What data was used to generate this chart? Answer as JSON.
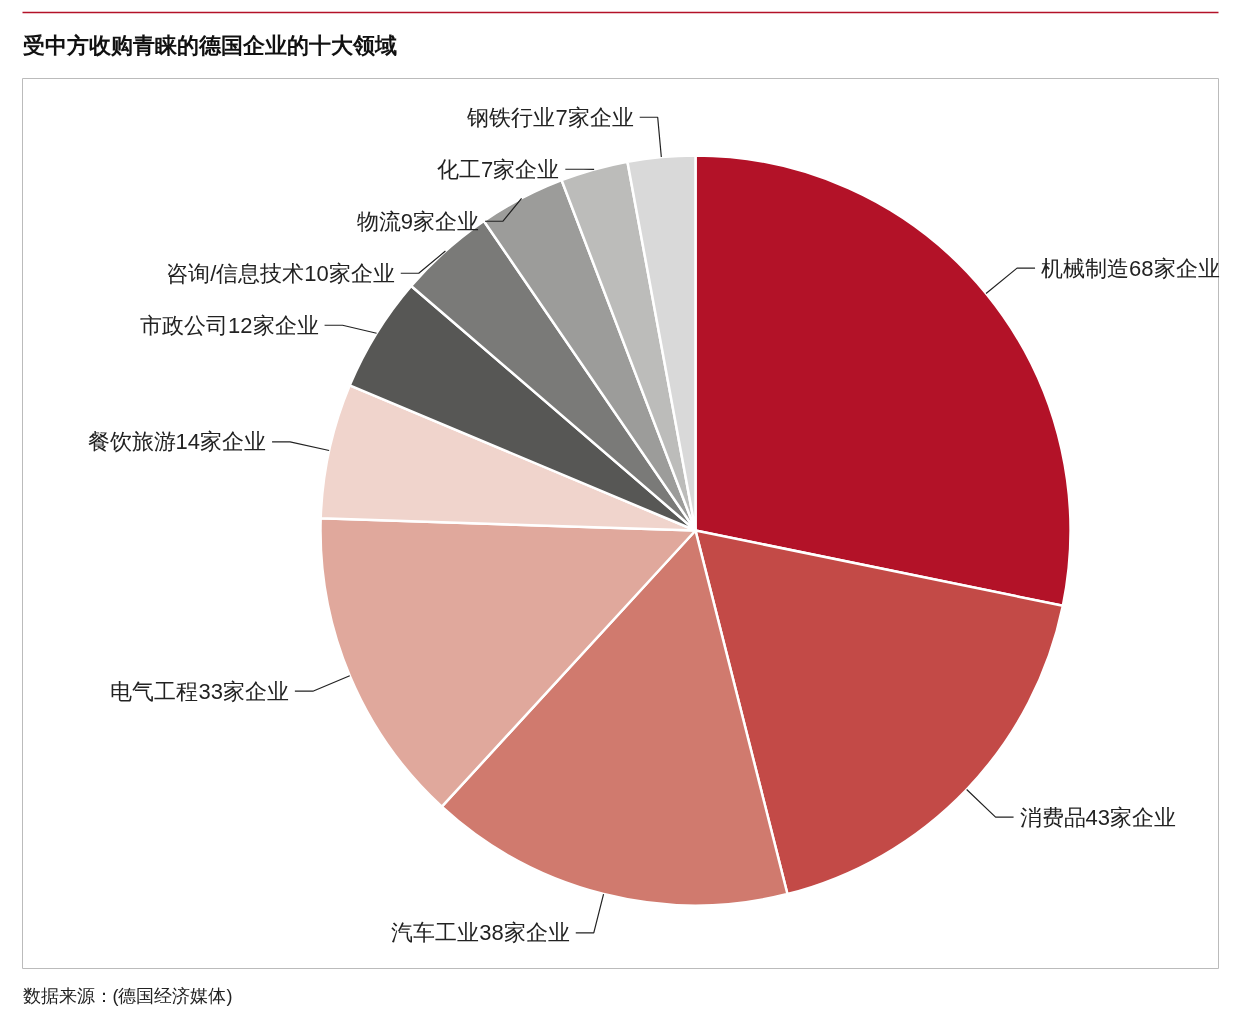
{
  "chart_data": {
    "type": "pie",
    "title": "受中方收购青睐的德国企业的十大领域",
    "categories": [
      "机械制造68家企业",
      "消费品43家企业",
      "汽车工业38家企业",
      "电气工程33家企业",
      "餐饮旅游14家企业",
      "市政公司12家企业",
      "咨询/信息技术10家企业",
      "物流9家企业",
      "化工7家企业",
      "钢铁行业7家企业"
    ],
    "values": [
      68,
      43,
      38,
      33,
      14,
      12,
      10,
      9,
      7,
      7
    ],
    "colors": [
      "#b31228",
      "#c34a47",
      "#d07a6e",
      "#e0a89c",
      "#f0d4cc",
      "#575755",
      "#7a7a78",
      "#9c9c9a",
      "#bcbcba",
      "#d9d9d9"
    ],
    "annotations": [
      "数据来源：(德国经济媒体)"
    ],
    "legend": false
  }
}
